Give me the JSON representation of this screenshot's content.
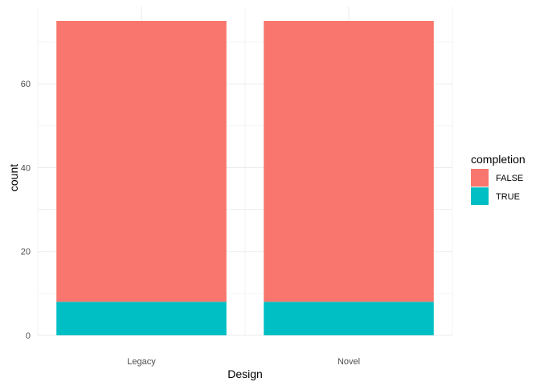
{
  "chart_data": {
    "type": "bar",
    "stacked": true,
    "title": "",
    "xlabel": "Design",
    "ylabel": "count",
    "categories": [
      "Legacy",
      "Novel"
    ],
    "series": [
      {
        "name": "FALSE",
        "values": [
          67,
          67
        ],
        "color": "#F8766D"
      },
      {
        "name": "TRUE",
        "values": [
          8,
          8
        ],
        "color": "#00BFC4"
      }
    ],
    "ylim": [
      0,
      75
    ],
    "y_ticks": [
      "0",
      "20",
      "40",
      "60"
    ],
    "grid": true,
    "legend": {
      "title": "completion",
      "position": "right"
    }
  }
}
